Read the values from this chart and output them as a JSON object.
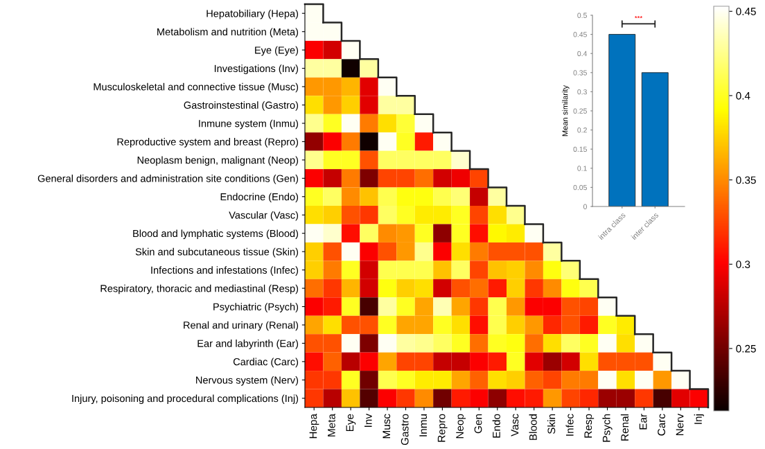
{
  "chart_data": [
    {
      "type": "heatmap",
      "clim": [
        0.213,
        0.453
      ],
      "cticks": [
        0.25,
        0.3,
        0.35,
        0.4,
        0.45
      ],
      "grid": false,
      "categories": [
        "Hepa",
        "Meta",
        "Eye",
        "Inv",
        "Musc",
        "Gastro",
        "Inmu",
        "Repro",
        "Neop",
        "Gen",
        "Endo",
        "Vasc",
        "Blood",
        "Skin",
        "Infec",
        "Resp",
        "Psych",
        "Renal",
        "Ear",
        "Carc",
        "Nerv",
        "Inj"
      ],
      "y_categories": [
        "Hepatobiliary (Hepa)",
        "Metabolism and nutrition (Meta)",
        "Eye (Eye)",
        "Investigations (Inv)",
        "Musculoskeletal and connective tissue (Musc)",
        "Gastroinstestinal (Gastro)",
        "Inmune system (Inmu)",
        "Reproductive system and breast (Repro)",
        "Neoplasm benign, malignant (Neop)",
        "General disorders and administration site conditions (Gen)",
        "Endocrine (Endo)",
        "Vascular (Vasc)",
        "Blood and lymphatic systems (Blood)",
        "Skin and subcutaneous tissue (Skin)",
        "Infections and infestations (Infec)",
        "Respiratory, thoracic and mediastinal (Resp)",
        "Psychiatric (Psych)",
        "Renal and urinary (Renal)",
        "Ear and labyrinth (Ear)",
        "Cardiac (Carc)",
        "Nervous system (Nerv)",
        "Injury, poisoning and procedural complications (Inj)"
      ],
      "cells": [
        [
          0.45,
          null,
          null,
          null,
          null,
          null,
          null,
          null,
          null,
          null,
          null,
          null,
          null,
          null,
          null,
          null,
          null,
          null,
          null,
          null,
          null,
          null
        ],
        [
          0.45,
          0.45,
          null,
          null,
          null,
          null,
          null,
          null,
          null,
          null,
          null,
          null,
          null,
          null,
          null,
          null,
          null,
          null,
          null,
          null,
          null,
          null
        ],
        [
          0.3,
          0.285,
          0.45,
          null,
          null,
          null,
          null,
          null,
          null,
          null,
          null,
          null,
          null,
          null,
          null,
          null,
          null,
          null,
          null,
          null,
          null,
          null
        ],
        [
          0.43,
          0.43,
          0.215,
          0.43,
          null,
          null,
          null,
          null,
          null,
          null,
          null,
          null,
          null,
          null,
          null,
          null,
          null,
          null,
          null,
          null,
          null,
          null
        ],
        [
          0.355,
          0.355,
          0.365,
          0.29,
          0.45,
          null,
          null,
          null,
          null,
          null,
          null,
          null,
          null,
          null,
          null,
          null,
          null,
          null,
          null,
          null,
          null,
          null
        ],
        [
          0.38,
          0.355,
          0.375,
          0.29,
          0.43,
          0.43,
          null,
          null,
          null,
          null,
          null,
          null,
          null,
          null,
          null,
          null,
          null,
          null,
          null,
          null,
          null,
          null
        ],
        [
          0.425,
          0.4,
          0.45,
          0.345,
          0.38,
          0.405,
          0.45,
          null,
          null,
          null,
          null,
          null,
          null,
          null,
          null,
          null,
          null,
          null,
          null,
          null,
          null,
          null
        ],
        [
          0.262,
          0.3,
          0.345,
          0.215,
          0.45,
          0.4,
          0.31,
          0.45,
          null,
          null,
          null,
          null,
          null,
          null,
          null,
          null,
          null,
          null,
          null,
          null,
          null,
          null
        ],
        [
          0.425,
          0.4,
          0.4,
          0.33,
          0.415,
          0.415,
          0.415,
          0.415,
          0.44,
          null,
          null,
          null,
          null,
          null,
          null,
          null,
          null,
          null,
          null,
          null,
          null,
          null
        ],
        [
          0.3,
          0.28,
          0.345,
          0.255,
          0.325,
          0.325,
          0.34,
          0.285,
          0.295,
          0.325,
          null,
          null,
          null,
          null,
          null,
          null,
          null,
          null,
          null,
          null,
          null,
          null
        ],
        [
          0.4,
          0.415,
          0.35,
          0.37,
          0.41,
          0.395,
          0.395,
          0.41,
          0.42,
          0.28,
          0.43,
          null,
          null,
          null,
          null,
          null,
          null,
          null,
          null,
          null,
          null,
          null
        ],
        [
          0.38,
          0.375,
          0.33,
          0.32,
          0.415,
          0.4,
          0.385,
          0.385,
          0.4,
          0.325,
          0.38,
          0.425,
          null,
          null,
          null,
          null,
          null,
          null,
          null,
          null,
          null,
          null
        ],
        [
          0.45,
          0.44,
          0.305,
          0.415,
          0.35,
          0.355,
          0.4,
          0.26,
          0.4,
          0.305,
          0.39,
          0.385,
          0.45,
          null,
          null,
          null,
          null,
          null,
          null,
          null,
          null,
          null
        ],
        [
          0.375,
          0.33,
          0.45,
          0.3,
          0.33,
          0.355,
          0.425,
          0.3,
          0.38,
          0.345,
          0.33,
          0.33,
          0.33,
          0.43,
          null,
          null,
          null,
          null,
          null,
          null,
          null,
          null
        ],
        [
          0.375,
          0.345,
          0.4,
          0.285,
          0.41,
          0.41,
          0.41,
          0.37,
          0.415,
          0.325,
          0.37,
          0.375,
          0.35,
          0.395,
          0.42,
          null,
          null,
          null,
          null,
          null,
          null,
          null
        ],
        [
          0.34,
          0.32,
          0.365,
          0.285,
          0.395,
          0.375,
          0.38,
          0.285,
          0.33,
          0.34,
          0.31,
          0.375,
          0.32,
          0.35,
          0.395,
          0.41,
          null,
          null,
          null,
          null,
          null,
          null
        ],
        [
          0.3,
          0.31,
          0.4,
          0.235,
          0.43,
          0.4,
          0.36,
          0.435,
          0.36,
          0.32,
          0.41,
          0.355,
          0.3,
          0.3,
          0.33,
          0.325,
          0.45,
          null,
          null,
          null,
          null,
          null
        ],
        [
          0.36,
          0.38,
          0.33,
          0.33,
          0.4,
          0.36,
          0.36,
          0.4,
          0.38,
          0.305,
          0.41,
          0.375,
          0.355,
          0.315,
          0.33,
          0.31,
          0.4,
          0.385,
          null,
          null,
          null,
          null
        ],
        [
          0.33,
          0.33,
          0.45,
          0.255,
          0.45,
          0.43,
          0.425,
          0.415,
          0.4,
          0.34,
          0.4,
          0.395,
          0.34,
          0.38,
          0.415,
          0.4,
          0.45,
          0.38,
          0.45,
          null,
          null,
          null
        ],
        [
          0.305,
          0.335,
          0.275,
          0.3,
          0.36,
          0.325,
          0.325,
          0.28,
          0.28,
          0.3,
          0.31,
          0.4,
          0.29,
          0.265,
          0.285,
          0.38,
          0.33,
          0.33,
          0.33,
          0.45,
          null,
          null
        ],
        [
          0.32,
          0.32,
          0.4,
          0.25,
          0.41,
          0.4,
          0.385,
          0.385,
          0.36,
          0.335,
          0.38,
          0.375,
          0.335,
          0.325,
          0.345,
          0.345,
          0.45,
          0.38,
          0.45,
          0.355,
          0.45,
          null
        ],
        [
          0.32,
          0.275,
          0.37,
          0.24,
          0.3,
          0.32,
          0.35,
          0.25,
          0.31,
          0.3,
          0.26,
          0.305,
          0.31,
          0.355,
          0.325,
          0.315,
          0.265,
          0.265,
          0.32,
          0.235,
          0.29,
          0.3
        ]
      ]
    },
    {
      "type": "bar",
      "categories": [
        "intra class",
        "inter class"
      ],
      "values": [
        0.45,
        0.35
      ],
      "color": "#0072bd",
      "ylim": [
        0,
        0.5
      ],
      "yticks": [
        0,
        0.05,
        0.1,
        0.15,
        0.2,
        0.25,
        0.3,
        0.35,
        0.4,
        0.45,
        0.5
      ],
      "ylabel": "Mean similarity",
      "annotations": [
        "***"
      ],
      "grid": false
    }
  ]
}
